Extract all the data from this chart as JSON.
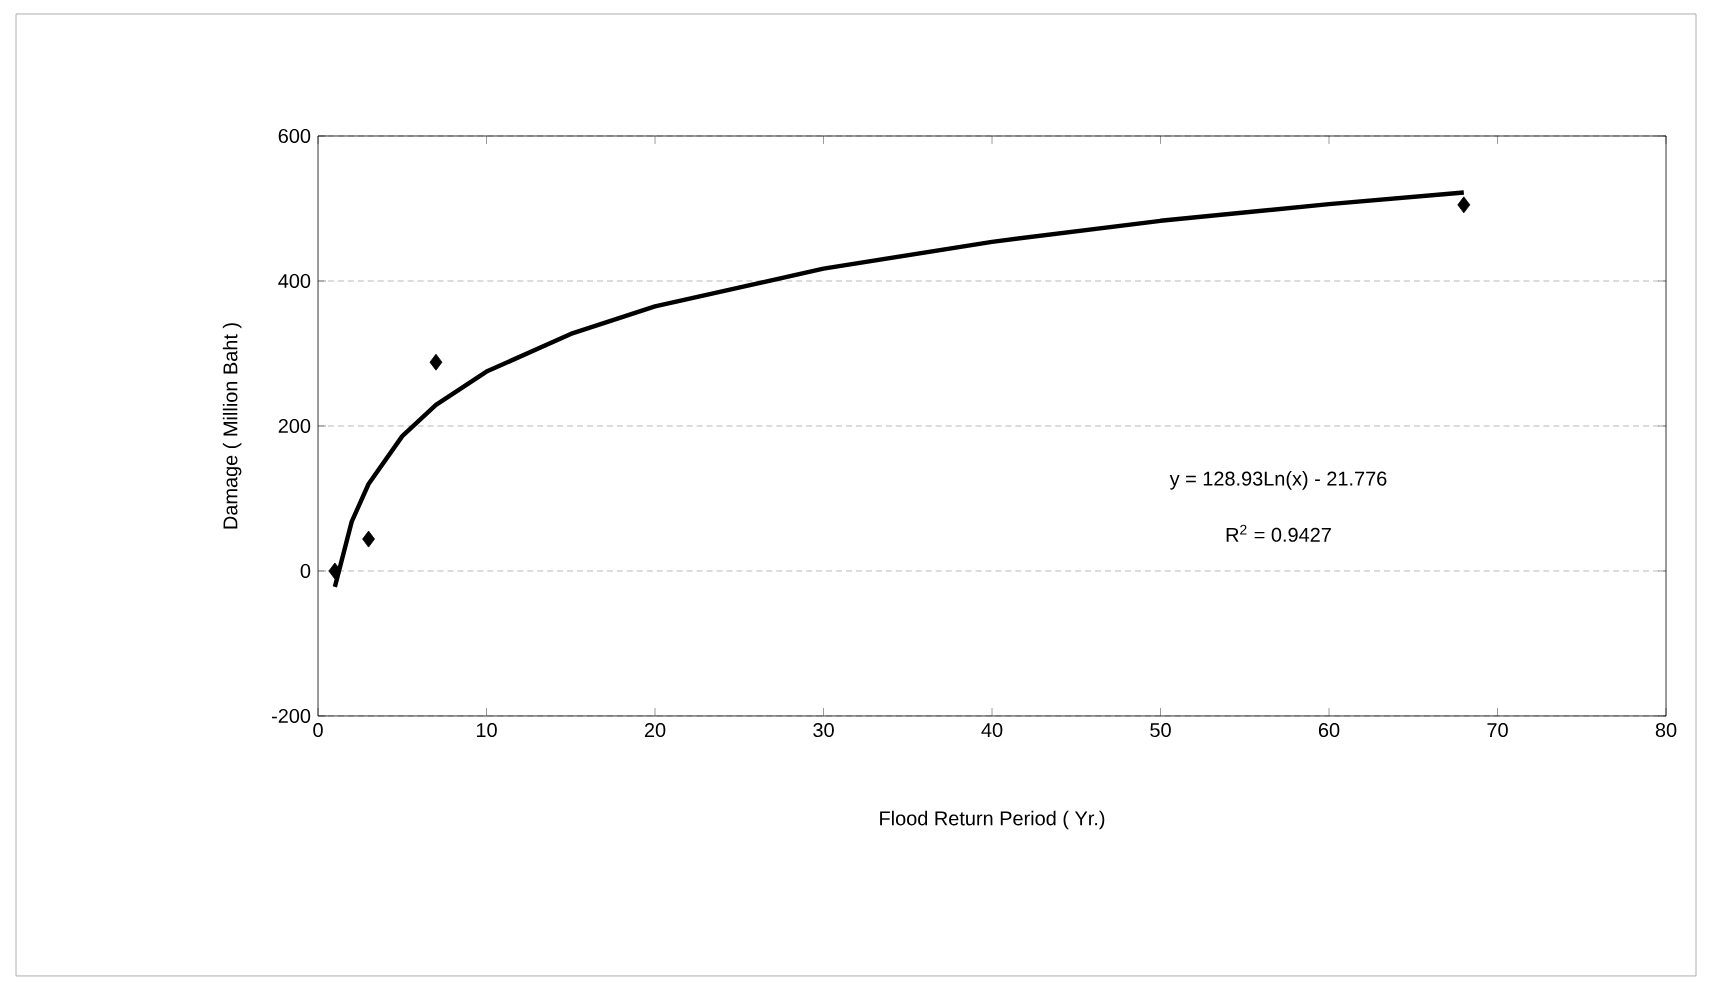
{
  "chart_data": {
    "type": "scatter",
    "xlabel": "Flood  Return  Period ( Yr.)",
    "ylabel": "Damage ( Million  Baht )",
    "xlim": [
      0,
      80
    ],
    "ylim": [
      -200,
      600
    ],
    "xticks": [
      0,
      10,
      20,
      30,
      40,
      50,
      60,
      70,
      80
    ],
    "yticks": [
      -200,
      0,
      200,
      400,
      600
    ],
    "grid": "y",
    "series": [
      {
        "marker": "diamond",
        "color": "#000000",
        "x": [
          1,
          3,
          7,
          68
        ],
        "values": [
          0,
          44,
          288,
          505
        ]
      },
      {
        "type": "line",
        "marker": "none",
        "line_style": "solid",
        "color": "#000000",
        "x": [
          1,
          2,
          3,
          5,
          7,
          10,
          15,
          20,
          30,
          40,
          50,
          60,
          68
        ],
        "values": [
          -22,
          68,
          120,
          186,
          229,
          275,
          327,
          365,
          417,
          454,
          483,
          506,
          522
        ]
      }
    ],
    "annotations": [
      "y = 128.93Ln(x) - 21.776",
      "R$^{2}$ = 0.9427"
    ]
  }
}
